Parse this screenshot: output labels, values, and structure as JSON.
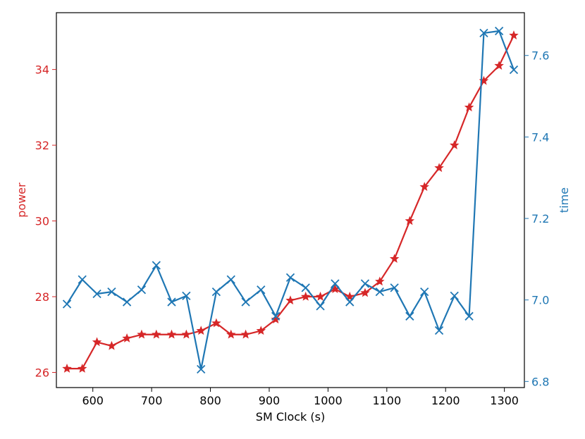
{
  "chart_data": {
    "type": "line",
    "xlabel": "SM Clock (s)",
    "ylabel_left": "power",
    "ylabel_right": "time",
    "xlim": [
      538,
      1334
    ],
    "ylim_left": [
      25.6,
      35.5
    ],
    "ylim_right": [
      6.785,
      7.705
    ],
    "x_ticks": [
      600,
      700,
      800,
      900,
      1000,
      1100,
      1200,
      1300
    ],
    "y_left_ticks": [
      26,
      28,
      30,
      32,
      34
    ],
    "y_right_ticks": [
      6.8,
      7.0,
      7.2,
      7.4,
      7.6
    ],
    "grid": false,
    "colors": {
      "power": "#d62728",
      "time": "#1f77b4",
      "axes": "#000000"
    },
    "x": [
      556,
      582,
      607,
      632,
      658,
      683,
      708,
      734,
      759,
      784,
      810,
      835,
      860,
      886,
      911,
      936,
      962,
      987,
      1012,
      1037,
      1063,
      1088,
      1113,
      1139,
      1164,
      1189,
      1215,
      1240,
      1265,
      1291,
      1316
    ],
    "series": [
      {
        "axis": "left",
        "color": "#d62728",
        "marker": "star",
        "values": [
          26.1,
          26.1,
          26.8,
          26.7,
          26.9,
          27.0,
          27.0,
          27.0,
          27.0,
          27.1,
          27.3,
          27.0,
          27.0,
          27.1,
          27.4,
          27.9,
          28.0,
          28.0,
          28.2,
          28.0,
          28.1,
          28.4,
          29.0,
          30.0,
          30.9,
          31.4,
          32.0,
          33.0,
          33.7,
          34.1,
          34.9
        ]
      },
      {
        "axis": "right",
        "color": "#1f77b4",
        "marker": "x",
        "values": [
          6.99,
          7.05,
          7.015,
          7.02,
          6.995,
          7.025,
          7.085,
          6.995,
          7.01,
          6.83,
          7.02,
          7.05,
          6.995,
          7.025,
          6.96,
          7.055,
          7.03,
          6.985,
          7.04,
          6.995,
          7.04,
          7.02,
          7.03,
          6.96,
          7.02,
          6.925,
          7.01,
          6.96,
          7.655,
          7.66,
          7.565
        ]
      }
    ]
  }
}
